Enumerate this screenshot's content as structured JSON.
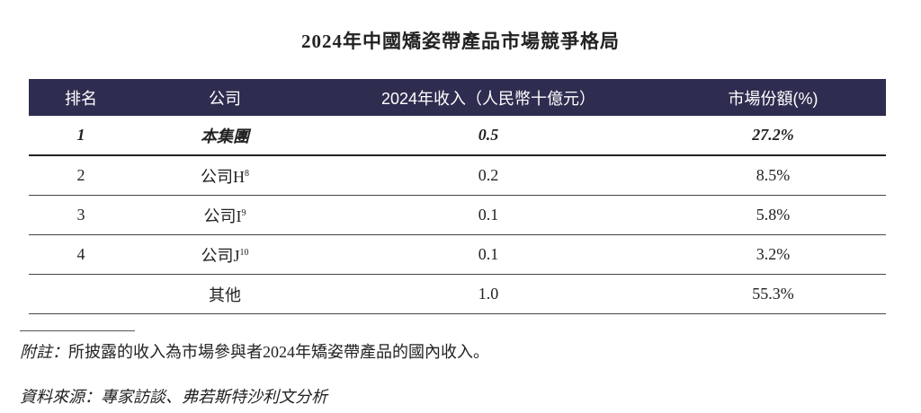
{
  "title": "2024年中國矯姿帶產品市場競爭格局",
  "table": {
    "headers": [
      "排名",
      "公司",
      "2024年收入（人民幣十億元）",
      "市場份額(%)"
    ],
    "rows": [
      {
        "rank": "1",
        "company": "本集團",
        "sup": "",
        "revenue": "0.5",
        "share": "27.2%"
      },
      {
        "rank": "2",
        "company": "公司H",
        "sup": "8",
        "revenue": "0.2",
        "share": "8.5%"
      },
      {
        "rank": "3",
        "company": "公司I",
        "sup": "9",
        "revenue": "0.1",
        "share": "5.8%"
      },
      {
        "rank": "4",
        "company": "公司J",
        "sup": "10",
        "revenue": "0.1",
        "share": "3.2%"
      },
      {
        "rank": "",
        "company": "其他",
        "sup": "",
        "revenue": "1.0",
        "share": "55.3%"
      }
    ],
    "header_color": "#2e2d50"
  },
  "note": {
    "label": "附註：",
    "text": "所披露的收入為市場參與者2024年矯姿帶產品的國內收入。"
  },
  "source": "資料來源：專家訪談、弗若斯特沙利文分析"
}
